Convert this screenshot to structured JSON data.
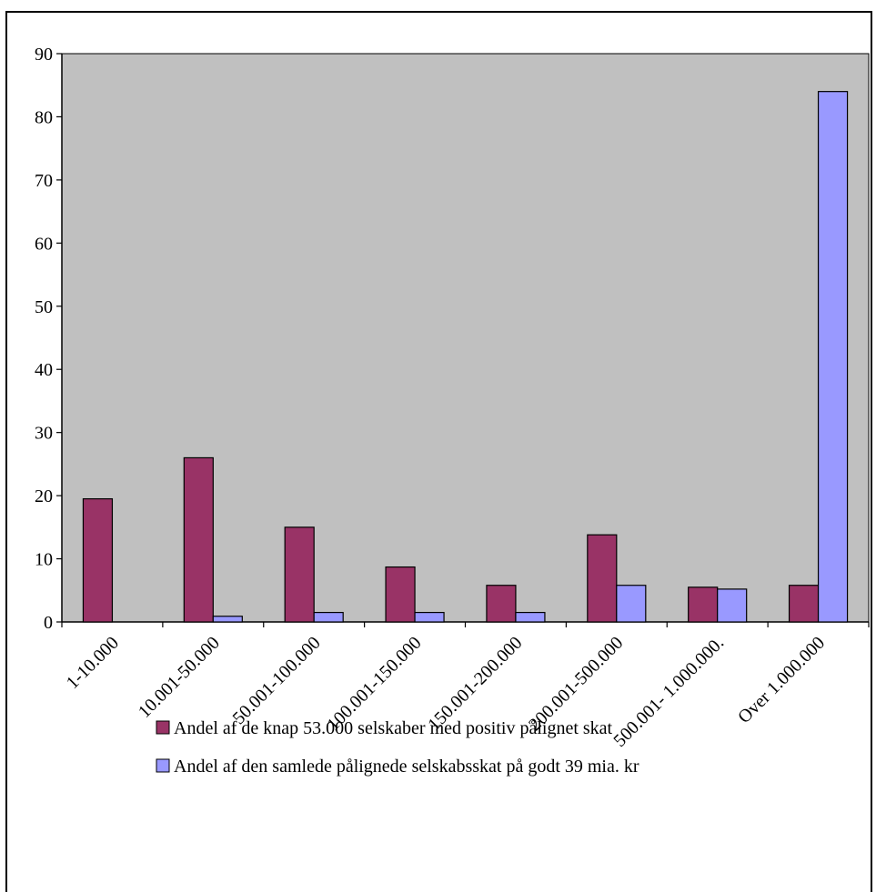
{
  "chart_data": {
    "type": "bar",
    "categories": [
      "1-10.000",
      "10.001-50.000",
      "50.001-100.000",
      "100.001-150.000",
      "150.001-200.000",
      "200.001-500.000",
      "500.001- 1.000.000.",
      "Over 1.000.000"
    ],
    "series": [
      {
        "name": "Andel af de knap 53.000 selskaber med positiv pålignet skat",
        "color": "#993366",
        "values": [
          19.5,
          26,
          15,
          8.7,
          5.8,
          13.8,
          5.5,
          5.8
        ]
      },
      {
        "name": "Andel af den samlede pålignede selskabsskat på godt 39 mia. kr",
        "color": "#9999ff",
        "values": [
          0,
          0.9,
          1.5,
          1.5,
          1.5,
          5.8,
          5.2,
          84
        ]
      }
    ],
    "ylim": [
      0,
      90
    ],
    "yticks": [
      "0",
      "10",
      "20",
      "30",
      "40",
      "50",
      "60",
      "70",
      "80",
      "90"
    ],
    "plot_background": "#c0c0c0",
    "grid": false,
    "legend_position": "bottom"
  }
}
